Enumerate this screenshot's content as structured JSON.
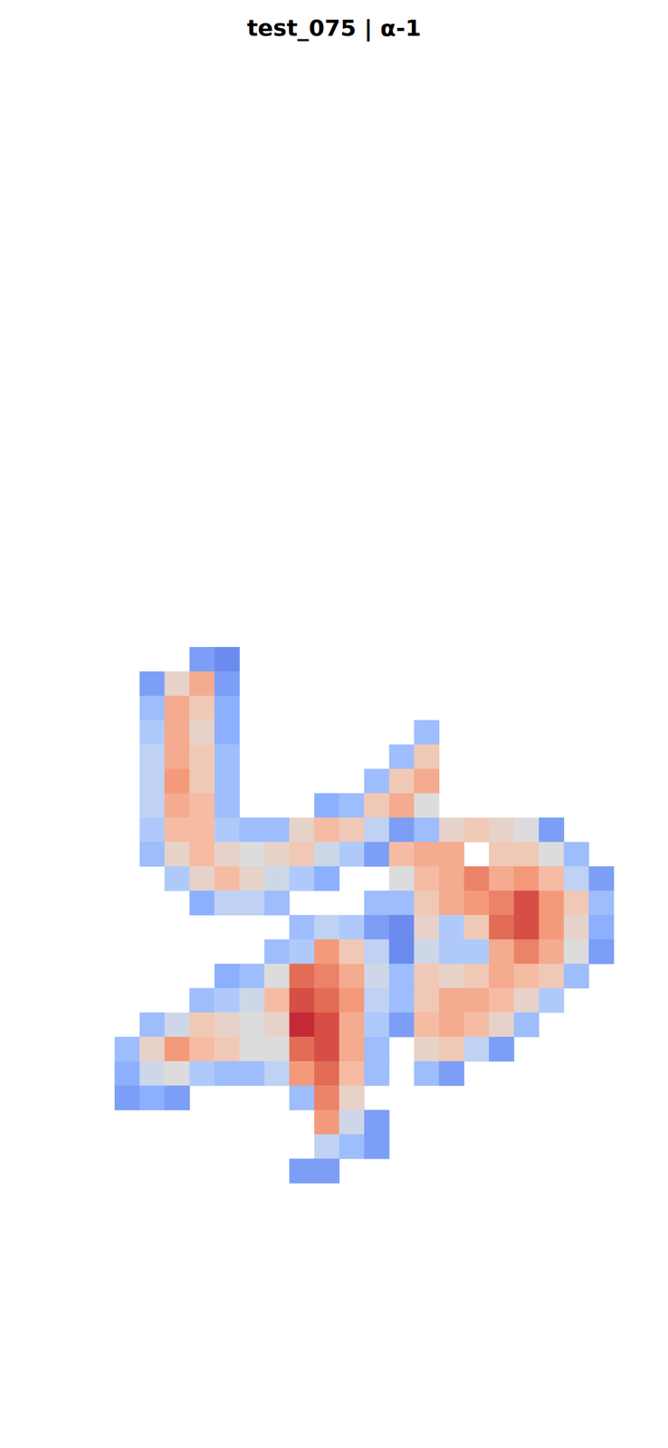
{
  "chart_data": {
    "type": "heatmap",
    "title": "test_075 | α-1",
    "tick_labels": false,
    "grid": false,
    "color_range": [
      0,
      1
    ],
    "cells": [
      [
        null,
        null,
        null,
        0.2,
        0.15,
        null,
        null,
        null,
        null,
        null,
        null,
        null,
        null,
        null,
        null,
        null,
        null,
        null,
        null,
        null
      ],
      [
        null,
        0.2,
        0.55,
        0.7,
        0.2,
        null,
        null,
        null,
        null,
        null,
        null,
        null,
        null,
        null,
        null,
        null,
        null,
        null,
        null,
        null
      ],
      [
        null,
        0.3,
        0.7,
        0.6,
        0.25,
        null,
        null,
        null,
        null,
        null,
        null,
        null,
        null,
        null,
        null,
        null,
        null,
        null,
        null,
        null
      ],
      [
        null,
        0.35,
        0.7,
        0.55,
        0.25,
        null,
        null,
        null,
        null,
        null,
        null,
        null,
        0.3,
        null,
        null,
        null,
        null,
        null,
        null,
        null
      ],
      [
        null,
        0.4,
        0.7,
        0.6,
        0.3,
        null,
        null,
        null,
        null,
        null,
        null,
        0.3,
        0.6,
        null,
        null,
        null,
        null,
        null,
        null,
        null
      ],
      [
        null,
        0.4,
        0.75,
        0.6,
        0.3,
        null,
        null,
        null,
        null,
        null,
        0.3,
        0.6,
        0.7,
        null,
        null,
        null,
        null,
        null,
        null,
        null
      ],
      [
        null,
        0.4,
        0.7,
        0.65,
        0.3,
        null,
        null,
        null,
        0.25,
        0.3,
        0.6,
        0.7,
        0.5,
        null,
        null,
        null,
        null,
        null,
        null,
        null
      ],
      [
        null,
        0.35,
        0.65,
        0.65,
        0.35,
        0.3,
        0.3,
        0.55,
        0.65,
        0.6,
        0.4,
        0.2,
        0.3,
        0.55,
        0.6,
        0.55,
        0.5,
        0.2,
        null,
        null
      ],
      [
        null,
        0.3,
        0.55,
        0.65,
        0.55,
        0.5,
        0.55,
        0.6,
        0.45,
        0.35,
        0.2,
        0.65,
        0.7,
        0.7,
        null,
        0.6,
        0.6,
        0.5,
        0.3,
        null
      ],
      [
        null,
        null,
        0.35,
        0.55,
        0.65,
        0.55,
        0.45,
        0.35,
        0.25,
        null,
        null,
        0.5,
        0.65,
        0.7,
        0.8,
        0.7,
        0.75,
        0.65,
        0.4,
        0.2
      ],
      [
        null,
        null,
        null,
        0.25,
        0.4,
        0.4,
        0.3,
        null,
        null,
        null,
        0.3,
        0.3,
        0.6,
        0.7,
        0.75,
        0.8,
        0.9,
        0.75,
        0.6,
        0.3
      ],
      [
        null,
        null,
        null,
        null,
        null,
        null,
        null,
        0.3,
        0.4,
        0.35,
        0.2,
        0.15,
        0.55,
        0.35,
        0.6,
        0.85,
        0.9,
        0.75,
        0.55,
        0.25
      ],
      [
        null,
        null,
        null,
        null,
        null,
        null,
        0.3,
        0.35,
        0.75,
        0.6,
        0.4,
        0.15,
        0.45,
        0.35,
        0.35,
        0.7,
        0.8,
        0.7,
        0.5,
        0.2
      ],
      [
        null,
        null,
        null,
        null,
        0.25,
        0.3,
        0.5,
        0.85,
        0.8,
        0.7,
        0.45,
        0.3,
        0.6,
        0.55,
        0.6,
        0.7,
        0.65,
        0.6,
        0.3,
        null
      ],
      [
        null,
        null,
        null,
        0.3,
        0.35,
        0.45,
        0.65,
        0.9,
        0.85,
        0.75,
        0.4,
        0.3,
        0.6,
        0.7,
        0.7,
        0.65,
        0.55,
        0.35,
        null,
        null
      ],
      [
        null,
        0.3,
        0.45,
        0.6,
        0.55,
        0.5,
        0.55,
        0.95,
        0.9,
        0.7,
        0.35,
        0.2,
        0.65,
        0.7,
        0.65,
        0.55,
        0.3,
        null,
        null,
        null
      ],
      [
        0.3,
        0.55,
        0.75,
        0.65,
        0.6,
        0.5,
        0.5,
        0.85,
        0.9,
        0.7,
        0.3,
        null,
        0.55,
        0.6,
        0.4,
        0.2,
        null,
        null,
        null,
        null
      ],
      [
        0.25,
        0.45,
        0.5,
        0.35,
        0.3,
        0.3,
        0.4,
        0.75,
        0.85,
        0.65,
        0.3,
        null,
        0.3,
        0.2,
        null,
        null,
        null,
        null,
        null,
        null
      ],
      [
        0.2,
        0.25,
        0.2,
        null,
        null,
        null,
        null,
        0.3,
        0.8,
        0.55,
        null,
        null,
        null,
        null,
        null,
        null,
        null,
        null,
        null,
        null
      ],
      [
        null,
        null,
        null,
        null,
        null,
        null,
        null,
        null,
        0.75,
        0.45,
        0.2,
        null,
        null,
        null,
        null,
        null,
        null,
        null,
        null,
        null
      ],
      [
        null,
        null,
        null,
        null,
        null,
        null,
        null,
        null,
        0.4,
        0.3,
        0.2,
        null,
        null,
        null,
        null,
        null,
        null,
        null,
        null,
        null
      ],
      [
        null,
        null,
        null,
        null,
        null,
        null,
        null,
        0.2,
        0.2,
        null,
        null,
        null,
        null,
        null,
        null,
        null,
        null,
        null,
        null,
        null
      ]
    ]
  }
}
